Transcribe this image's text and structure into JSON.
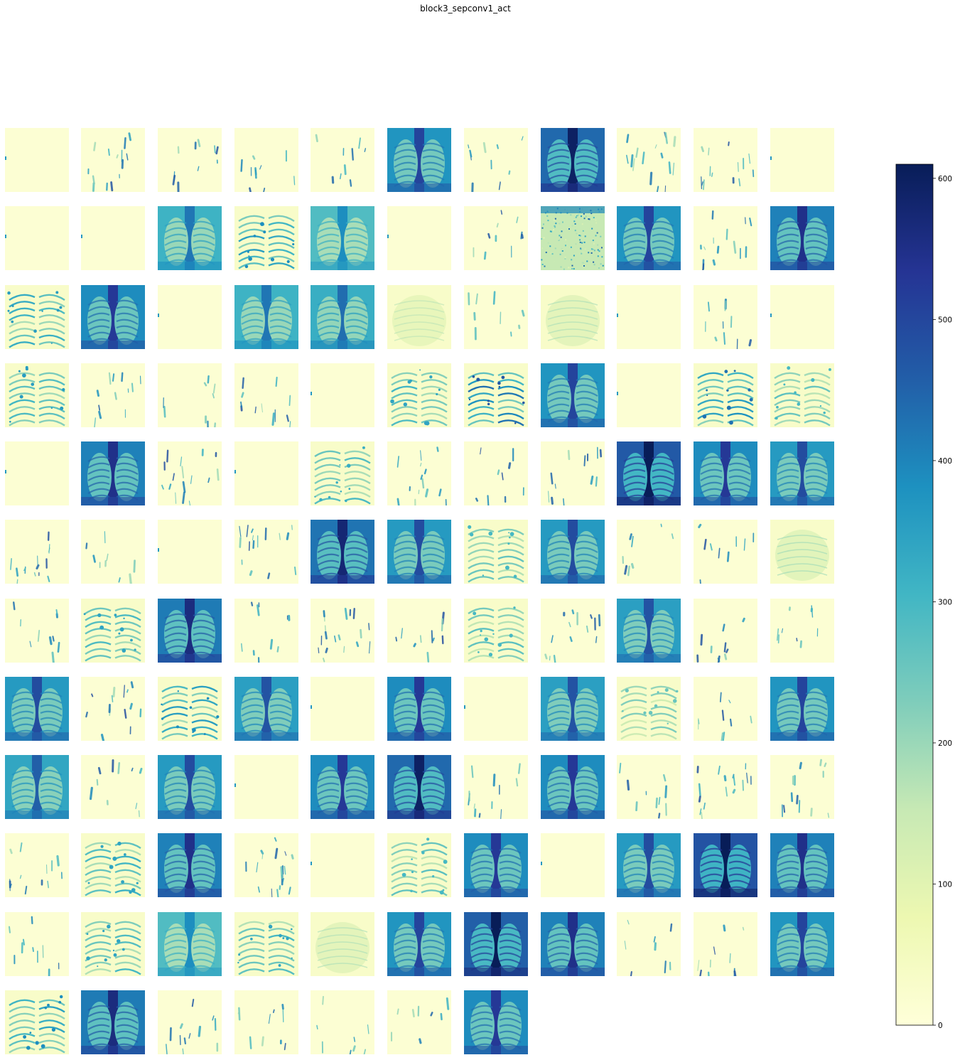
{
  "chart_data": {
    "type": "heatmap",
    "title": "block3_sepconv1_act",
    "layout": "grid of 128 activation maps (12 rows x 11 columns, last row partial)",
    "n_maps": 128,
    "colormap": "YlGnBu",
    "colorbar": {
      "vmin": 0,
      "vmax": 610,
      "ticks": [
        "0",
        "100",
        "200",
        "300",
        "400",
        "500",
        "600"
      ],
      "position": "right"
    },
    "tiles": [
      {
        "row": 0,
        "col": 0,
        "style": "blank",
        "intensity": 0.05
      },
      {
        "row": 0,
        "col": 1,
        "style": "sparse",
        "intensity": 0.2
      },
      {
        "row": 0,
        "col": 2,
        "style": "sparse",
        "intensity": 0.12
      },
      {
        "row": 0,
        "col": 3,
        "style": "sparse",
        "intensity": 0.12
      },
      {
        "row": 0,
        "col": 4,
        "style": "sparse",
        "intensity": 0.08
      },
      {
        "row": 0,
        "col": 5,
        "style": "lung",
        "intensity": 0.72
      },
      {
        "row": 0,
        "col": 6,
        "style": "sparse",
        "intensity": 0.1
      },
      {
        "row": 0,
        "col": 7,
        "style": "lung",
        "intensity": 0.85
      },
      {
        "row": 0,
        "col": 8,
        "style": "sparse",
        "intensity": 0.25
      },
      {
        "row": 0,
        "col": 9,
        "style": "sparse",
        "intensity": 0.22
      },
      {
        "row": 0,
        "col": 10,
        "style": "blank",
        "intensity": 0.03
      },
      {
        "row": 1,
        "col": 0,
        "style": "blank",
        "intensity": 0.05
      },
      {
        "row": 1,
        "col": 1,
        "style": "blank",
        "intensity": 0.04
      },
      {
        "row": 1,
        "col": 2,
        "style": "lung",
        "intensity": 0.6
      },
      {
        "row": 1,
        "col": 3,
        "style": "ribs",
        "intensity": 0.45
      },
      {
        "row": 1,
        "col": 4,
        "style": "lung",
        "intensity": 0.55
      },
      {
        "row": 1,
        "col": 5,
        "style": "blank",
        "intensity": 0.03
      },
      {
        "row": 1,
        "col": 6,
        "style": "sparse",
        "intensity": 0.1
      },
      {
        "row": 1,
        "col": 7,
        "style": "noisy",
        "intensity": 0.5
      },
      {
        "row": 1,
        "col": 8,
        "style": "lung",
        "intensity": 0.72
      },
      {
        "row": 1,
        "col": 9,
        "style": "sparse",
        "intensity": 0.2
      },
      {
        "row": 1,
        "col": 10,
        "style": "lung",
        "intensity": 0.78
      },
      {
        "row": 2,
        "col": 0,
        "style": "ribs",
        "intensity": 0.42
      },
      {
        "row": 2,
        "col": 1,
        "style": "lung",
        "intensity": 0.75
      },
      {
        "row": 2,
        "col": 2,
        "style": "blank",
        "intensity": 0.03
      },
      {
        "row": 2,
        "col": 3,
        "style": "lung",
        "intensity": 0.6
      },
      {
        "row": 2,
        "col": 4,
        "style": "lung",
        "intensity": 0.62
      },
      {
        "row": 2,
        "col": 5,
        "style": "faint",
        "intensity": 0.25
      },
      {
        "row": 2,
        "col": 6,
        "style": "sparse",
        "intensity": 0.08
      },
      {
        "row": 2,
        "col": 7,
        "style": "faint",
        "intensity": 0.28
      },
      {
        "row": 2,
        "col": 8,
        "style": "blank",
        "intensity": 0.03
      },
      {
        "row": 2,
        "col": 9,
        "style": "sparse",
        "intensity": 0.1
      },
      {
        "row": 2,
        "col": 10,
        "style": "blank",
        "intensity": 0.04
      },
      {
        "row": 3,
        "col": 0,
        "style": "ribs",
        "intensity": 0.42
      },
      {
        "row": 3,
        "col": 1,
        "style": "sparse",
        "intensity": 0.15
      },
      {
        "row": 3,
        "col": 2,
        "style": "sparse",
        "intensity": 0.08
      },
      {
        "row": 3,
        "col": 3,
        "style": "sparse",
        "intensity": 0.15
      },
      {
        "row": 3,
        "col": 4,
        "style": "blank",
        "intensity": 0.03
      },
      {
        "row": 3,
        "col": 5,
        "style": "ribs",
        "intensity": 0.4
      },
      {
        "row": 3,
        "col": 6,
        "style": "ribs",
        "intensity": 0.55
      },
      {
        "row": 3,
        "col": 7,
        "style": "lung",
        "intensity": 0.72
      },
      {
        "row": 3,
        "col": 8,
        "style": "blank",
        "intensity": 0.03
      },
      {
        "row": 3,
        "col": 9,
        "style": "ribs",
        "intensity": 0.5
      },
      {
        "row": 3,
        "col": 10,
        "style": "ribs",
        "intensity": 0.35
      },
      {
        "row": 4,
        "col": 0,
        "style": "blank",
        "intensity": 0.03
      },
      {
        "row": 4,
        "col": 1,
        "style": "lung",
        "intensity": 0.78
      },
      {
        "row": 4,
        "col": 2,
        "style": "sparse",
        "intensity": 0.25
      },
      {
        "row": 4,
        "col": 3,
        "style": "blank",
        "intensity": 0.03
      },
      {
        "row": 4,
        "col": 4,
        "style": "ribs",
        "intensity": 0.38
      },
      {
        "row": 4,
        "col": 5,
        "style": "sparse",
        "intensity": 0.22
      },
      {
        "row": 4,
        "col": 6,
        "style": "sparse",
        "intensity": 0.08
      },
      {
        "row": 4,
        "col": 7,
        "style": "sparse",
        "intensity": 0.15
      },
      {
        "row": 4,
        "col": 8,
        "style": "lung",
        "intensity": 0.9
      },
      {
        "row": 4,
        "col": 9,
        "style": "lung",
        "intensity": 0.75
      },
      {
        "row": 4,
        "col": 10,
        "style": "lung",
        "intensity": 0.7
      },
      {
        "row": 5,
        "col": 0,
        "style": "sparse",
        "intensity": 0.22
      },
      {
        "row": 5,
        "col": 1,
        "style": "sparse",
        "intensity": 0.08
      },
      {
        "row": 5,
        "col": 2,
        "style": "blank",
        "intensity": 0.03
      },
      {
        "row": 5,
        "col": 3,
        "style": "sparse",
        "intensity": 0.25
      },
      {
        "row": 5,
        "col": 4,
        "style": "lung",
        "intensity": 0.82
      },
      {
        "row": 5,
        "col": 5,
        "style": "lung",
        "intensity": 0.7
      },
      {
        "row": 5,
        "col": 6,
        "style": "ribs",
        "intensity": 0.35
      },
      {
        "row": 5,
        "col": 7,
        "style": "lung",
        "intensity": 0.7
      },
      {
        "row": 5,
        "col": 8,
        "style": "sparse",
        "intensity": 0.06
      },
      {
        "row": 5,
        "col": 9,
        "style": "sparse",
        "intensity": 0.08
      },
      {
        "row": 5,
        "col": 10,
        "style": "faint",
        "intensity": 0.3
      },
      {
        "row": 6,
        "col": 0,
        "style": "sparse",
        "intensity": 0.12
      },
      {
        "row": 6,
        "col": 1,
        "style": "ribs",
        "intensity": 0.4
      },
      {
        "row": 6,
        "col": 2,
        "style": "lung",
        "intensity": 0.8
      },
      {
        "row": 6,
        "col": 3,
        "style": "sparse",
        "intensity": 0.12
      },
      {
        "row": 6,
        "col": 4,
        "style": "sparse",
        "intensity": 0.3
      },
      {
        "row": 6,
        "col": 5,
        "style": "sparse",
        "intensity": 0.1
      },
      {
        "row": 6,
        "col": 6,
        "style": "ribs",
        "intensity": 0.35
      },
      {
        "row": 6,
        "col": 7,
        "style": "sparse",
        "intensity": 0.2
      },
      {
        "row": 6,
        "col": 8,
        "style": "lung",
        "intensity": 0.68
      },
      {
        "row": 6,
        "col": 9,
        "style": "sparse",
        "intensity": 0.1
      },
      {
        "row": 6,
        "col": 10,
        "style": "sparse",
        "intensity": 0.08
      },
      {
        "row": 7,
        "col": 0,
        "style": "lung",
        "intensity": 0.7
      },
      {
        "row": 7,
        "col": 1,
        "style": "sparse",
        "intensity": 0.2
      },
      {
        "row": 7,
        "col": 2,
        "style": "ribs",
        "intensity": 0.45
      },
      {
        "row": 7,
        "col": 3,
        "style": "lung",
        "intensity": 0.68
      },
      {
        "row": 7,
        "col": 4,
        "style": "blank",
        "intensity": 0.03
      },
      {
        "row": 7,
        "col": 5,
        "style": "lung",
        "intensity": 0.75
      },
      {
        "row": 7,
        "col": 6,
        "style": "blank",
        "intensity": 0.05
      },
      {
        "row": 7,
        "col": 7,
        "style": "lung",
        "intensity": 0.68
      },
      {
        "row": 7,
        "col": 8,
        "style": "ribs",
        "intensity": 0.3
      },
      {
        "row": 7,
        "col": 9,
        "style": "sparse",
        "intensity": 0.08
      },
      {
        "row": 7,
        "col": 10,
        "style": "lung",
        "intensity": 0.72
      },
      {
        "row": 8,
        "col": 0,
        "style": "lung",
        "intensity": 0.65
      },
      {
        "row": 8,
        "col": 1,
        "style": "sparse",
        "intensity": 0.1
      },
      {
        "row": 8,
        "col": 2,
        "style": "lung",
        "intensity": 0.7
      },
      {
        "row": 8,
        "col": 3,
        "style": "blank",
        "intensity": 0.03
      },
      {
        "row": 8,
        "col": 4,
        "style": "lung",
        "intensity": 0.75
      },
      {
        "row": 8,
        "col": 5,
        "style": "lung",
        "intensity": 0.85
      },
      {
        "row": 8,
        "col": 6,
        "style": "sparse",
        "intensity": 0.15
      },
      {
        "row": 8,
        "col": 7,
        "style": "lung",
        "intensity": 0.75
      },
      {
        "row": 8,
        "col": 8,
        "style": "sparse",
        "intensity": 0.12
      },
      {
        "row": 8,
        "col": 9,
        "style": "sparse",
        "intensity": 0.25
      },
      {
        "row": 8,
        "col": 10,
        "style": "sparse",
        "intensity": 0.18
      },
      {
        "row": 9,
        "col": 0,
        "style": "sparse",
        "intensity": 0.18
      },
      {
        "row": 9,
        "col": 1,
        "style": "ribs",
        "intensity": 0.4
      },
      {
        "row": 9,
        "col": 2,
        "style": "lung",
        "intensity": 0.78
      },
      {
        "row": 9,
        "col": 3,
        "style": "sparse",
        "intensity": 0.3
      },
      {
        "row": 9,
        "col": 4,
        "style": "blank",
        "intensity": 0.03
      },
      {
        "row": 9,
        "col": 5,
        "style": "ribs",
        "intensity": 0.35
      },
      {
        "row": 9,
        "col": 6,
        "style": "lung",
        "intensity": 0.75
      },
      {
        "row": 9,
        "col": 7,
        "style": "blank",
        "intensity": 0.03
      },
      {
        "row": 9,
        "col": 8,
        "style": "lung",
        "intensity": 0.7
      },
      {
        "row": 9,
        "col": 9,
        "style": "lung",
        "intensity": 0.92
      },
      {
        "row": 9,
        "col": 10,
        "style": "lung",
        "intensity": 0.78
      },
      {
        "row": 10,
        "col": 0,
        "style": "sparse",
        "intensity": 0.1
      },
      {
        "row": 10,
        "col": 1,
        "style": "ribs",
        "intensity": 0.4
      },
      {
        "row": 10,
        "col": 2,
        "style": "lung",
        "intensity": 0.55
      },
      {
        "row": 10,
        "col": 3,
        "style": "ribs",
        "intensity": 0.4
      },
      {
        "row": 10,
        "col": 4,
        "style": "faint",
        "intensity": 0.28
      },
      {
        "row": 10,
        "col": 5,
        "style": "lung",
        "intensity": 0.72
      },
      {
        "row": 10,
        "col": 6,
        "style": "lung",
        "intensity": 0.88
      },
      {
        "row": 10,
        "col": 7,
        "style": "lung",
        "intensity": 0.78
      },
      {
        "row": 10,
        "col": 8,
        "style": "sparse",
        "intensity": 0.06
      },
      {
        "row": 10,
        "col": 9,
        "style": "sparse",
        "intensity": 0.1
      },
      {
        "row": 10,
        "col": 10,
        "style": "lung",
        "intensity": 0.72
      },
      {
        "row": 11,
        "col": 0,
        "style": "ribs",
        "intensity": 0.45
      },
      {
        "row": 11,
        "col": 1,
        "style": "lung",
        "intensity": 0.8
      },
      {
        "row": 11,
        "col": 2,
        "style": "sparse",
        "intensity": 0.15
      },
      {
        "row": 11,
        "col": 3,
        "style": "sparse",
        "intensity": 0.12
      },
      {
        "row": 11,
        "col": 4,
        "style": "sparse",
        "intensity": 0.06
      },
      {
        "row": 11,
        "col": 5,
        "style": "sparse",
        "intensity": 0.05
      },
      {
        "row": 11,
        "col": 6,
        "style": "lung",
        "intensity": 0.75
      }
    ]
  }
}
